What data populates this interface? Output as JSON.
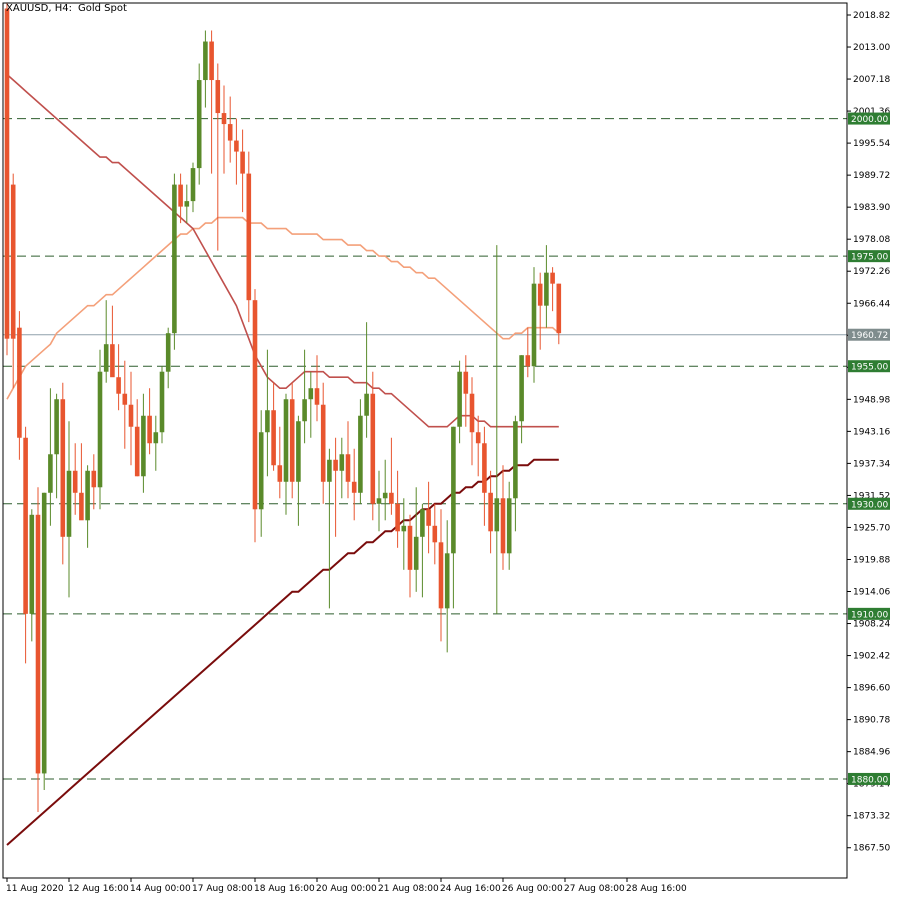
{
  "header": {
    "symbol": "XAUUSD, H4:",
    "description": "Gold Spot"
  },
  "colors": {
    "bull": "#5a8a2a",
    "bear": "#e8552f",
    "ma_fast": "#f4a07a",
    "ma_mid": "#c0504d",
    "ma_slow": "#7a0c0c",
    "level_line": "#2e5e2e",
    "level_label_bg": "#2e7d32",
    "current_label_bg": "#7f8c8d",
    "current_line": "#8fa0ab"
  },
  "chart_data": {
    "type": "candlestick",
    "symbol": "XAUUSD",
    "timeframe": "H4",
    "ylim": [
      1862,
      2021
    ],
    "y_ticks": [
      2018.82,
      2013.0,
      2007.18,
      2001.36,
      1995.54,
      1989.72,
      1983.9,
      1978.08,
      1972.26,
      1966.44,
      1960.62,
      1954.8,
      1948.98,
      1943.16,
      1937.34,
      1931.52,
      1925.7,
      1919.88,
      1914.06,
      1908.24,
      1902.42,
      1896.6,
      1890.78,
      1884.96,
      1879.14,
      1873.32,
      1867.5
    ],
    "x_labels": [
      {
        "index": 0,
        "label": "11 Aug 2020"
      },
      {
        "index": 10,
        "label": "12 Aug 16:00"
      },
      {
        "index": 20,
        "label": "14 Aug 00:00"
      },
      {
        "index": 30,
        "label": "17 Aug 08:00"
      },
      {
        "index": 40,
        "label": "18 Aug 16:00"
      },
      {
        "index": 50,
        "label": "20 Aug 00:00"
      },
      {
        "index": 60,
        "label": "21 Aug 08:00"
      },
      {
        "index": 70,
        "label": "24 Aug 16:00"
      },
      {
        "index": 80,
        "label": "26 Aug 00:00"
      },
      {
        "index": 90,
        "label": "27 Aug 08:00"
      },
      {
        "index": 100,
        "label": "28 Aug 16:00"
      }
    ],
    "levels": [
      {
        "value": 2000.0,
        "label": "2000.00"
      },
      {
        "value": 1975.0,
        "label": "1975.00"
      },
      {
        "value": 1955.0,
        "label": "1955.00"
      },
      {
        "value": 1930.0,
        "label": "1930.00"
      },
      {
        "value": 1910.0,
        "label": "1910.00"
      },
      {
        "value": 1880.0,
        "label": "1880.00"
      }
    ],
    "current_price": {
      "value": 1960.72,
      "label": "1960.72"
    },
    "candles": [
      {
        "o": 2020,
        "h": 2021,
        "l": 1957,
        "c": 1960
      },
      {
        "o": 1988,
        "h": 1990,
        "l": 1951,
        "c": 1960
      },
      {
        "o": 1962,
        "h": 1965,
        "l": 1938,
        "c": 1942
      },
      {
        "o": 1942,
        "h": 1944,
        "l": 1901,
        "c": 1910
      },
      {
        "o": 1910,
        "h": 1929,
        "l": 1905,
        "c": 1928
      },
      {
        "o": 1928,
        "h": 1933,
        "l": 1874,
        "c": 1881
      },
      {
        "o": 1881,
        "h": 1932,
        "l": 1878,
        "c": 1932
      },
      {
        "o": 1932,
        "h": 1951,
        "l": 1926,
        "c": 1939
      },
      {
        "o": 1939,
        "h": 1950,
        "l": 1931,
        "c": 1949
      },
      {
        "o": 1949,
        "h": 1952,
        "l": 1919,
        "c": 1924
      },
      {
        "o": 1924,
        "h": 1945,
        "l": 1913,
        "c": 1936
      },
      {
        "o": 1936,
        "h": 1941,
        "l": 1928,
        "c": 1932
      },
      {
        "o": 1932,
        "h": 1941,
        "l": 1928,
        "c": 1927
      },
      {
        "o": 1927,
        "h": 1937,
        "l": 1922,
        "c": 1936
      },
      {
        "o": 1936,
        "h": 1939,
        "l": 1929,
        "c": 1933
      },
      {
        "o": 1933,
        "h": 1958,
        "l": 1929,
        "c": 1954
      },
      {
        "o": 1954,
        "h": 1967,
        "l": 1952,
        "c": 1959
      },
      {
        "o": 1959,
        "h": 1966,
        "l": 1954,
        "c": 1953
      },
      {
        "o": 1953,
        "h": 1959,
        "l": 1947,
        "c": 1950
      },
      {
        "o": 1950,
        "h": 1956,
        "l": 1940,
        "c": 1948
      },
      {
        "o": 1948,
        "h": 1954,
        "l": 1937,
        "c": 1944
      },
      {
        "o": 1944,
        "h": 1949,
        "l": 1935,
        "c": 1935
      },
      {
        "o": 1935,
        "h": 1950,
        "l": 1932,
        "c": 1946
      },
      {
        "o": 1946,
        "h": 1951,
        "l": 1939,
        "c": 1941
      },
      {
        "o": 1941,
        "h": 1946,
        "l": 1936,
        "c": 1943
      },
      {
        "o": 1943,
        "h": 1955,
        "l": 1941,
        "c": 1954
      },
      {
        "o": 1954,
        "h": 1962,
        "l": 1951,
        "c": 1961
      },
      {
        "o": 1961,
        "h": 1990,
        "l": 1958,
        "c": 1988
      },
      {
        "o": 1988,
        "h": 1990,
        "l": 1981,
        "c": 1984
      },
      {
        "o": 1984,
        "h": 1988,
        "l": 1981,
        "c": 1985
      },
      {
        "o": 1985,
        "h": 1992,
        "l": 1983,
        "c": 1991
      },
      {
        "o": 1991,
        "h": 2010,
        "l": 1988,
        "c": 2007
      },
      {
        "o": 2007,
        "h": 2016,
        "l": 2002,
        "c": 2014
      },
      {
        "o": 2014,
        "h": 2016,
        "l": 1990,
        "c": 2007
      },
      {
        "o": 2007,
        "h": 2010,
        "l": 1976,
        "c": 2001
      },
      {
        "o": 2001,
        "h": 2006,
        "l": 1990,
        "c": 1999
      },
      {
        "o": 1999,
        "h": 2004,
        "l": 1992,
        "c": 1996
      },
      {
        "o": 1996,
        "h": 2000,
        "l": 1988,
        "c": 1994
      },
      {
        "o": 1994,
        "h": 1998,
        "l": 1983,
        "c": 1990
      },
      {
        "o": 1990,
        "h": 1994,
        "l": 1963,
        "c": 1967
      },
      {
        "o": 1967,
        "h": 1969,
        "l": 1923,
        "c": 1929
      },
      {
        "o": 1929,
        "h": 1947,
        "l": 1924,
        "c": 1943
      },
      {
        "o": 1943,
        "h": 1958,
        "l": 1935,
        "c": 1947
      },
      {
        "o": 1947,
        "h": 1952,
        "l": 1936,
        "c": 1937
      },
      {
        "o": 1937,
        "h": 1944,
        "l": 1931,
        "c": 1934
      },
      {
        "o": 1934,
        "h": 1950,
        "l": 1928,
        "c": 1949
      },
      {
        "o": 1949,
        "h": 1952,
        "l": 1931,
        "c": 1934
      },
      {
        "o": 1934,
        "h": 1946,
        "l": 1926,
        "c": 1945
      },
      {
        "o": 1945,
        "h": 1958,
        "l": 1941,
        "c": 1949
      },
      {
        "o": 1949,
        "h": 1954,
        "l": 1942,
        "c": 1951
      },
      {
        "o": 1951,
        "h": 1957,
        "l": 1945,
        "c": 1948
      },
      {
        "o": 1948,
        "h": 1952,
        "l": 1930,
        "c": 1934
      },
      {
        "o": 1934,
        "h": 1940,
        "l": 1911,
        "c": 1938
      },
      {
        "o": 1938,
        "h": 1942,
        "l": 1924,
        "c": 1936
      },
      {
        "o": 1936,
        "h": 1942,
        "l": 1931,
        "c": 1939
      },
      {
        "o": 1939,
        "h": 1945,
        "l": 1931,
        "c": 1934
      },
      {
        "o": 1934,
        "h": 1940,
        "l": 1927,
        "c": 1932
      },
      {
        "o": 1932,
        "h": 1949,
        "l": 1930,
        "c": 1946
      },
      {
        "o": 1946,
        "h": 1963,
        "l": 1942,
        "c": 1950
      },
      {
        "o": 1950,
        "h": 1954,
        "l": 1927,
        "c": 1930
      },
      {
        "o": 1930,
        "h": 1936,
        "l": 1925,
        "c": 1931
      },
      {
        "o": 1931,
        "h": 1938,
        "l": 1927,
        "c": 1932
      },
      {
        "o": 1932,
        "h": 1942,
        "l": 1928,
        "c": 1930
      },
      {
        "o": 1930,
        "h": 1936,
        "l": 1922,
        "c": 1925
      },
      {
        "o": 1925,
        "h": 1931,
        "l": 1918,
        "c": 1926
      },
      {
        "o": 1926,
        "h": 1928,
        "l": 1913,
        "c": 1918
      },
      {
        "o": 1918,
        "h": 1933,
        "l": 1914,
        "c": 1924
      },
      {
        "o": 1924,
        "h": 1930,
        "l": 1913,
        "c": 1929
      },
      {
        "o": 1929,
        "h": 1934,
        "l": 1921,
        "c": 1926
      },
      {
        "o": 1926,
        "h": 1930,
        "l": 1919,
        "c": 1923
      },
      {
        "o": 1923,
        "h": 1929,
        "l": 1905,
        "c": 1911
      },
      {
        "o": 1911,
        "h": 1927,
        "l": 1903,
        "c": 1921
      },
      {
        "o": 1921,
        "h": 1944,
        "l": 1911,
        "c": 1944
      },
      {
        "o": 1944,
        "h": 1956,
        "l": 1941,
        "c": 1954
      },
      {
        "o": 1954,
        "h": 1957,
        "l": 1944,
        "c": 1950
      },
      {
        "o": 1950,
        "h": 1953,
        "l": 1937,
        "c": 1943
      },
      {
        "o": 1943,
        "h": 1946,
        "l": 1935,
        "c": 1941
      },
      {
        "o": 1941,
        "h": 1944,
        "l": 1926,
        "c": 1932
      },
      {
        "o": 1932,
        "h": 1936,
        "l": 1921,
        "c": 1925
      },
      {
        "o": 1925,
        "h": 1977,
        "l": 1910,
        "c": 1931
      },
      {
        "o": 1931,
        "h": 1937,
        "l": 1918,
        "c": 1921
      },
      {
        "o": 1921,
        "h": 1934,
        "l": 1918,
        "c": 1931
      },
      {
        "o": 1931,
        "h": 1946,
        "l": 1925,
        "c": 1945
      },
      {
        "o": 1945,
        "h": 1957,
        "l": 1941,
        "c": 1957
      },
      {
        "o": 1957,
        "h": 1962,
        "l": 1953,
        "c": 1955
      },
      {
        "o": 1955,
        "h": 1973,
        "l": 1952,
        "c": 1970
      },
      {
        "o": 1970,
        "h": 1972,
        "l": 1958,
        "c": 1966
      },
      {
        "o": 1966,
        "h": 1977,
        "l": 1962,
        "c": 1972
      },
      {
        "o": 1972,
        "h": 1973,
        "l": 1965,
        "c": 1970
      },
      {
        "o": 1970,
        "h": 1970,
        "l": 1959,
        "c": 1961
      }
    ],
    "ma_fast": [
      1949,
      1951,
      1953,
      1955,
      1956,
      1957,
      1958,
      1959,
      1961,
      1962,
      1963,
      1964,
      1965,
      1966,
      1966,
      1967,
      1968,
      1968,
      1969,
      1970,
      1971,
      1972,
      1973,
      1974,
      1975,
      1976,
      1977,
      1978,
      1979,
      1979,
      1980,
      1980,
      1981,
      1981,
      1982,
      1982,
      1982,
      1982,
      1982,
      1981,
      1981,
      1981,
      1980,
      1980,
      1980,
      1980,
      1979,
      1979,
      1979,
      1979,
      1979,
      1978,
      1978,
      1978,
      1978,
      1977,
      1977,
      1977,
      1976,
      1976,
      1975,
      1975,
      1974,
      1974,
      1973,
      1973,
      1972,
      1972,
      1971,
      1971,
      1970,
      1969,
      1968,
      1967,
      1966,
      1965,
      1964,
      1963,
      1962,
      1961,
      1960,
      1960,
      1961,
      1961,
      1962,
      1962,
      1962,
      1962,
      1962,
      1961
    ],
    "ma_mid": [
      2008,
      2007,
      2006,
      2005,
      2004,
      2003,
      2002,
      2001,
      2000,
      1999,
      1998,
      1997,
      1996,
      1995,
      1994,
      1993,
      1993,
      1992,
      1992,
      1991,
      1990,
      1989,
      1988,
      1987,
      1986,
      1985,
      1984,
      1983,
      1982,
      1981,
      1980,
      1978,
      1976,
      1974,
      1972,
      1970,
      1968,
      1966,
      1963,
      1960,
      1957,
      1955,
      1953,
      1952,
      1951,
      1951,
      1952,
      1953,
      1954,
      1954,
      1954,
      1954,
      1953,
      1953,
      1953,
      1953,
      1952,
      1952,
      1952,
      1951,
      1951,
      1950,
      1950,
      1949,
      1948,
      1947,
      1946,
      1945,
      1944,
      1944,
      1944,
      1944,
      1945,
      1946,
      1946,
      1946,
      1945,
      1945,
      1944,
      1944,
      1944,
      1944,
      1944,
      1944,
      1944,
      1944,
      1944,
      1944,
      1944,
      1944
    ],
    "ma_slow": [
      1868,
      1869,
      1870,
      1871,
      1872,
      1873,
      1874,
      1875,
      1876,
      1877,
      1878,
      1879,
      1880,
      1881,
      1882,
      1883,
      1884,
      1885,
      1886,
      1887,
      1888,
      1889,
      1890,
      1891,
      1892,
      1893,
      1894,
      1895,
      1896,
      1897,
      1898,
      1899,
      1900,
      1901,
      1902,
      1903,
      1904,
      1905,
      1906,
      1907,
      1908,
      1909,
      1910,
      1911,
      1912,
      1913,
      1914,
      1914,
      1915,
      1916,
      1917,
      1918,
      1918,
      1919,
      1920,
      1921,
      1921,
      1922,
      1923,
      1923,
      1924,
      1925,
      1925,
      1926,
      1927,
      1927,
      1928,
      1929,
      1929,
      1930,
      1930,
      1931,
      1932,
      1932,
      1933,
      1933,
      1934,
      1934,
      1935,
      1935,
      1936,
      1936,
      1937,
      1937,
      1937,
      1938,
      1938,
      1938,
      1938,
      1938
    ]
  }
}
